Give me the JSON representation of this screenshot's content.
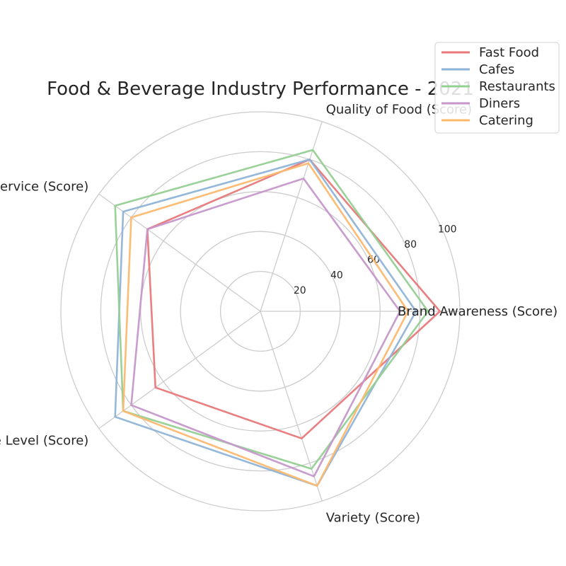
{
  "chart_data": {
    "type": "radar",
    "title": "Food & Beverage Industry Performance - 2021",
    "axes": [
      "Brand Awareness (Score)",
      "Quality of Food (Score)",
      "Customer Service (Score)",
      "Price Level (Score)",
      "Variety (Score)"
    ],
    "radial_range": [
      0,
      100
    ],
    "radial_ticks": [
      20,
      40,
      60,
      80,
      100
    ],
    "grid": true,
    "legend_position": "top-right",
    "series": [
      {
        "name": "Fast Food",
        "color": "#e8787a",
        "values": [
          90,
          80,
          70,
          65,
          67
        ]
      },
      {
        "name": "Cafes",
        "color": "#8fb4d8",
        "values": [
          78,
          80,
          85,
          90,
          92
        ]
      },
      {
        "name": "Restaurants",
        "color": "#95cf93",
        "values": [
          84,
          85,
          90,
          85,
          83
        ]
      },
      {
        "name": "Diners",
        "color": "#c697cb",
        "values": [
          70,
          70,
          70,
          80,
          87
        ]
      },
      {
        "name": "Catering",
        "color": "#fdb86e",
        "values": [
          74,
          78,
          80,
          85,
          92
        ]
      }
    ]
  }
}
